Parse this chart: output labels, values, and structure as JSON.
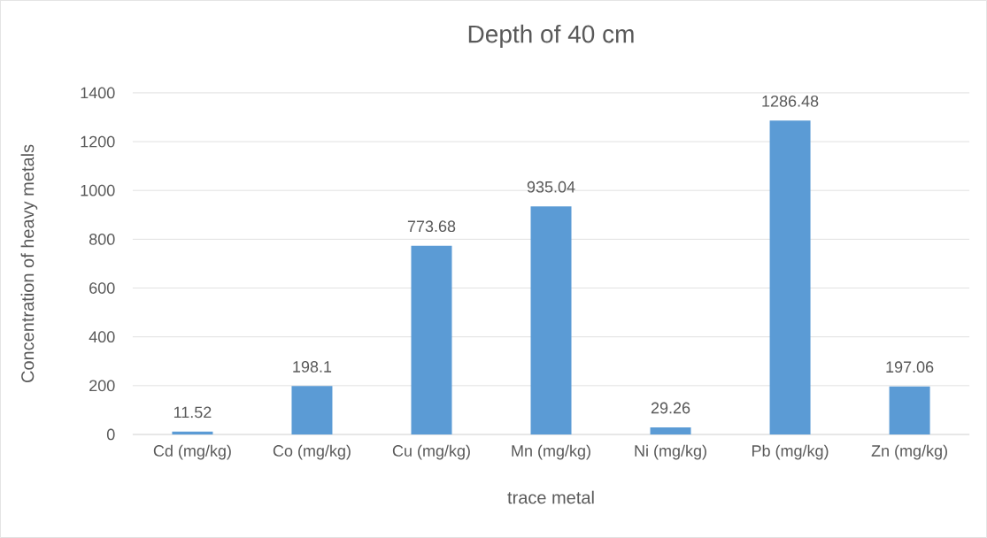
{
  "chart_data": {
    "type": "bar",
    "title": "Depth of 40 cm",
    "xlabel": "trace metal",
    "ylabel": "Concentration of heavy metals",
    "categories": [
      "Cd (mg/kg)",
      "Co (mg/kg)",
      "Cu (mg/kg)",
      "Mn (mg/kg)",
      "Ni (mg/kg)",
      "Pb (mg/kg)",
      "Zn (mg/kg)"
    ],
    "values": [
      11.52,
      198.1,
      773.68,
      935.04,
      29.26,
      1286.48,
      197.06
    ],
    "value_labels": [
      "11.52",
      "198.1",
      "773.68",
      "935.04",
      "29.26",
      "1286.48",
      "197.06"
    ],
    "color": "#5b9bd5",
    "ylim": [
      0,
      1400
    ],
    "yticks": [
      0,
      200,
      400,
      600,
      800,
      1000,
      1200,
      1400
    ],
    "grid": "y"
  }
}
